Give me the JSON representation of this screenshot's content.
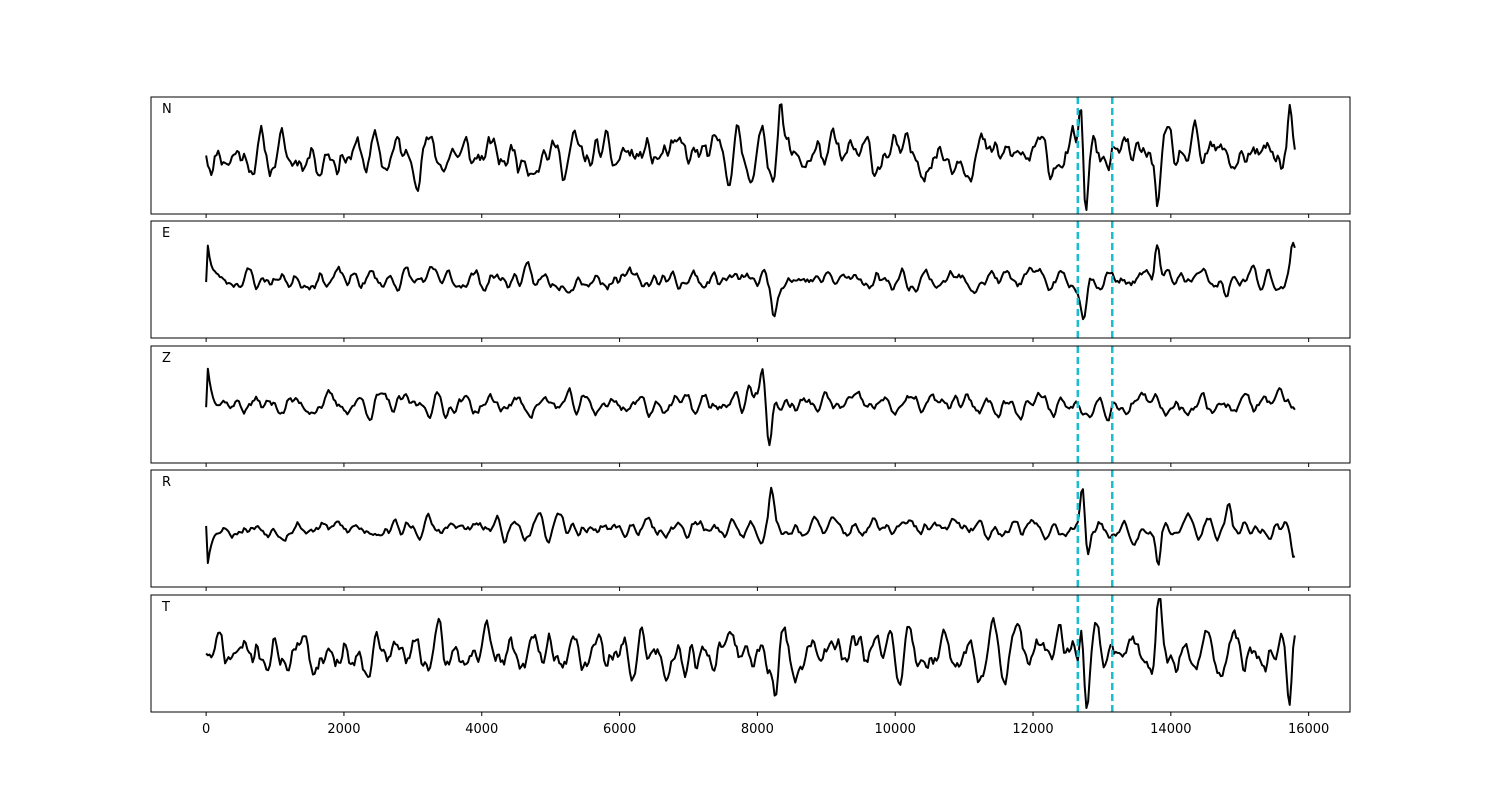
{
  "chart_data": {
    "type": "line",
    "title": "",
    "xlabel": "",
    "ylabel": "",
    "xlim": [
      -800,
      16600
    ],
    "xticks": [
      0,
      2000,
      4000,
      6000,
      8000,
      10000,
      12000,
      14000,
      16000
    ],
    "xtick_labels": [
      "0",
      "2000",
      "4000",
      "6000",
      "8000",
      "10000",
      "12000",
      "14000",
      "16000"
    ],
    "shared_x": true,
    "y_ticks_shown": false,
    "grid": false,
    "legend": "none",
    "line_color": "#000000",
    "marker_color": "#17becf",
    "vertical_markers": [
      {
        "x": 12650,
        "style": "dashed"
      },
      {
        "x": 13150,
        "style": "dashed"
      }
    ],
    "panels": [
      {
        "label": "N",
        "x_end": 15800,
        "amplitude": 0.65,
        "start_spike": 0.0,
        "seed": 11,
        "events": [
          {
            "x": 8330,
            "amp": 0.9
          },
          {
            "x": 12700,
            "amp": 0.9
          },
          {
            "x": 12760,
            "amp": -0.95
          },
          {
            "x": 13810,
            "amp": -0.7
          },
          {
            "x": 15730,
            "amp": 0.85
          }
        ]
      },
      {
        "label": "E",
        "x_end": 15800,
        "amplitude": 0.32,
        "start_spike": 0.95,
        "seed": 23,
        "events": [
          {
            "x": 8240,
            "amp": -0.55
          },
          {
            "x": 12740,
            "amp": -0.75
          },
          {
            "x": 13800,
            "amp": 0.65
          },
          {
            "x": 14800,
            "amp": -0.55
          },
          {
            "x": 15780,
            "amp": 0.55
          }
        ]
      },
      {
        "label": "Z",
        "x_end": 15800,
        "amplitude": 0.3,
        "start_spike": 1.0,
        "seed": 37,
        "events": [
          {
            "x": 8080,
            "amp": 0.75
          },
          {
            "x": 8180,
            "amp": -0.75
          },
          {
            "x": 7880,
            "amp": 0.45
          }
        ]
      },
      {
        "label": "R",
        "x_end": 15800,
        "amplitude": 0.3,
        "start_spike": -0.95,
        "seed": 53,
        "events": [
          {
            "x": 8200,
            "amp": 0.6
          },
          {
            "x": 12730,
            "amp": 0.85
          },
          {
            "x": 12780,
            "amp": -0.6
          },
          {
            "x": 13820,
            "amp": -0.55
          },
          {
            "x": 14840,
            "amp": 0.6
          },
          {
            "x": 15780,
            "amp": -0.55
          }
        ]
      },
      {
        "label": "T",
        "x_end": 15800,
        "amplitude": 0.65,
        "start_spike": 0.0,
        "seed": 71,
        "events": [
          {
            "x": 8270,
            "amp": -0.85
          },
          {
            "x": 12710,
            "amp": 0.9
          },
          {
            "x": 12770,
            "amp": -0.95
          },
          {
            "x": 13830,
            "amp": 0.85
          },
          {
            "x": 15730,
            "amp": -0.85
          },
          {
            "x": 15790,
            "amp": 0.65
          }
        ]
      }
    ]
  }
}
